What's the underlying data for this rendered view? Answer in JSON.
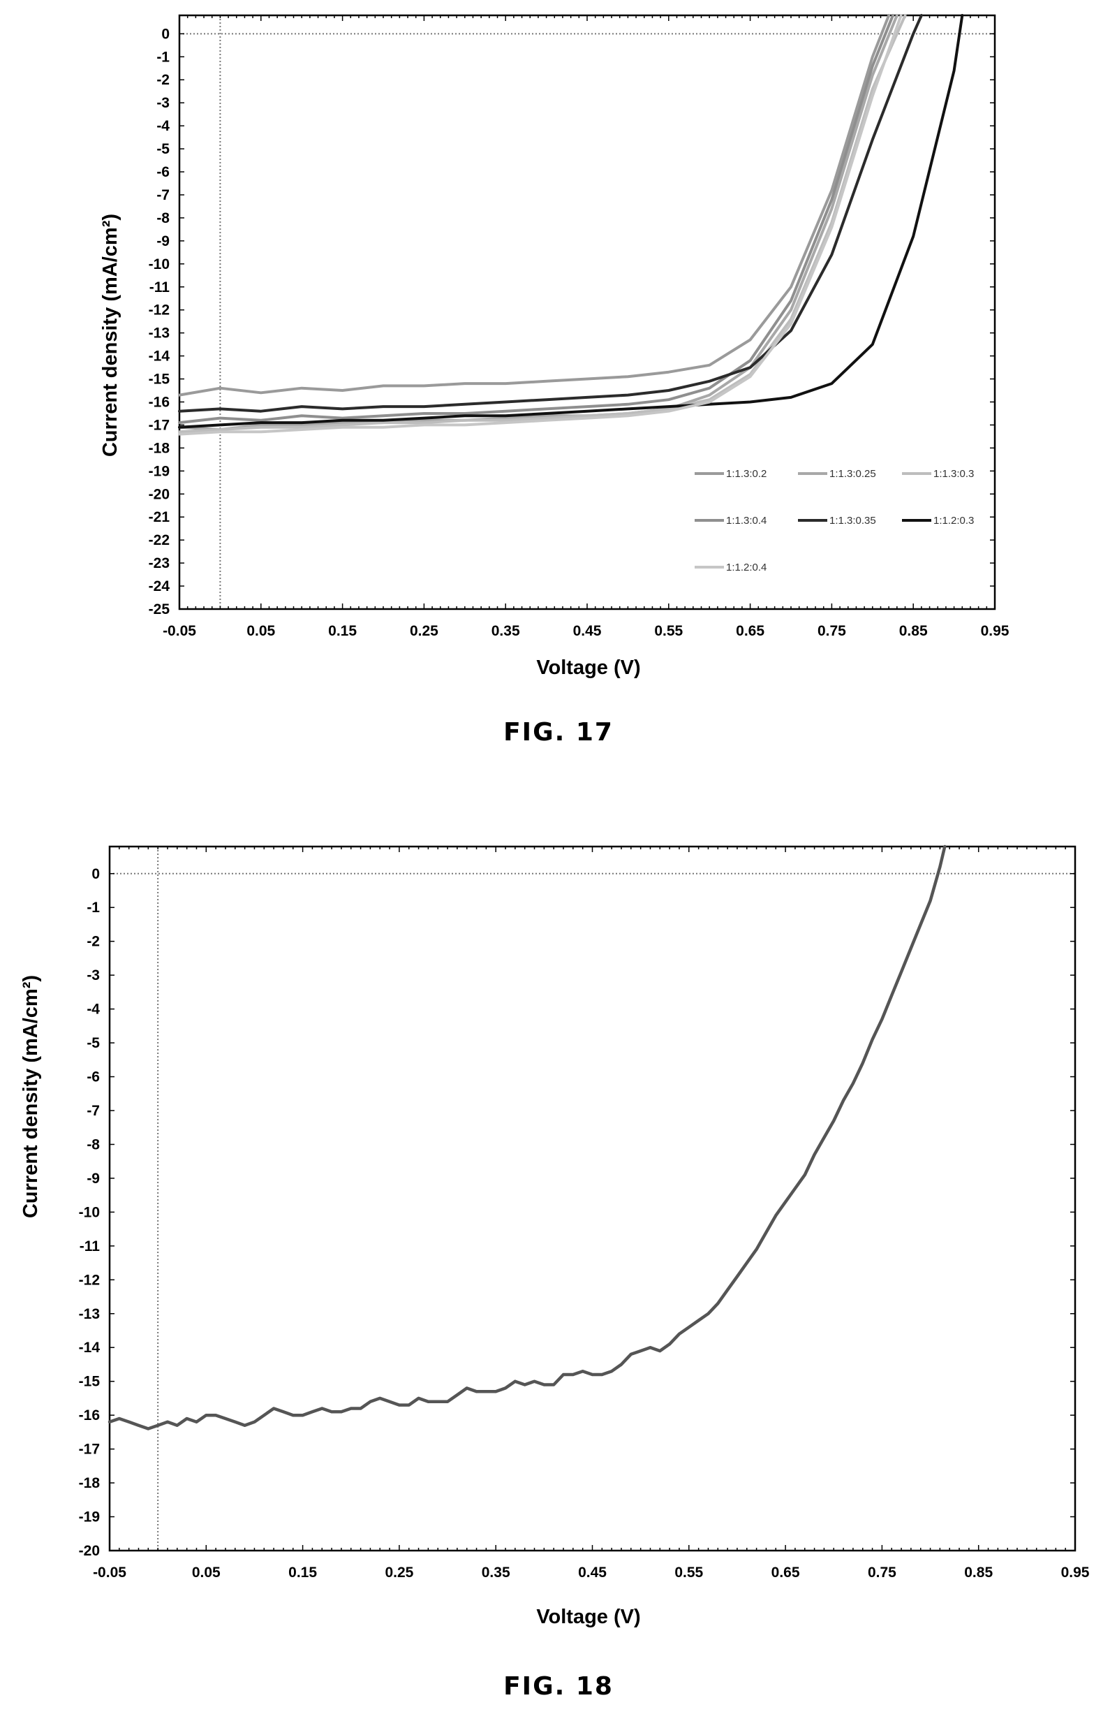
{
  "chart_data": [
    {
      "type": "line",
      "caption": "FIG. 17",
      "xlabel": "Voltage (V)",
      "ylabel": "Current density (mA/cm²)",
      "xlim": [
        -0.05,
        0.95
      ],
      "ylim": [
        -25,
        0.8
      ],
      "xticks": [
        "-0.05",
        "0.05",
        "0.15",
        "0.25",
        "0.35",
        "0.45",
        "0.55",
        "0.65",
        "0.75",
        "0.85",
        "0.95"
      ],
      "yticks": [
        "0",
        "-1",
        "-2",
        "-3",
        "-4",
        "-5",
        "-6",
        "-7",
        "-8",
        "-9",
        "-10",
        "-11",
        "-12",
        "-13",
        "-14",
        "-15",
        "-16",
        "-17",
        "-18",
        "-19",
        "-20",
        "-21",
        "-22",
        "-23",
        "-24",
        "-25"
      ],
      "legend_position": "bottom-right",
      "grid": false,
      "series": [
        {
          "name": "1:1.3:0.2",
          "color": "#9a9a9a",
          "x": [
            -0.05,
            0.0,
            0.05,
            0.1,
            0.15,
            0.2,
            0.25,
            0.3,
            0.35,
            0.4,
            0.45,
            0.5,
            0.55,
            0.6,
            0.65,
            0.7,
            0.75,
            0.8,
            0.82
          ],
          "y": [
            -15.7,
            -15.4,
            -15.6,
            -15.4,
            -15.5,
            -15.3,
            -15.3,
            -15.2,
            -15.2,
            -15.1,
            -15.0,
            -14.9,
            -14.7,
            -14.4,
            -13.3,
            -11.0,
            -6.8,
            -1.0,
            0.8
          ]
        },
        {
          "name": "1:1.3:0.25",
          "color": "#a8a8a8",
          "x": [
            -0.05,
            0.0,
            0.05,
            0.1,
            0.15,
            0.2,
            0.25,
            0.3,
            0.35,
            0.4,
            0.45,
            0.5,
            0.55,
            0.6,
            0.65,
            0.7,
            0.75,
            0.8,
            0.83
          ],
          "y": [
            -17.1,
            -17.2,
            -17.0,
            -17.0,
            -16.9,
            -16.9,
            -16.8,
            -16.8,
            -16.7,
            -16.6,
            -16.6,
            -16.5,
            -16.3,
            -15.7,
            -14.5,
            -12.0,
            -7.6,
            -1.8,
            0.8
          ]
        },
        {
          "name": "1:1.3:0.3",
          "color": "#bdbdbd",
          "x": [
            -0.05,
            0.0,
            0.05,
            0.1,
            0.15,
            0.2,
            0.25,
            0.3,
            0.35,
            0.4,
            0.45,
            0.5,
            0.55,
            0.6,
            0.65,
            0.7,
            0.75,
            0.8,
            0.84
          ],
          "y": [
            -17.3,
            -17.2,
            -17.1,
            -17.1,
            -17.0,
            -16.9,
            -16.9,
            -16.8,
            -16.8,
            -16.7,
            -16.6,
            -16.5,
            -16.3,
            -15.9,
            -14.8,
            -12.4,
            -8.2,
            -2.4,
            0.8
          ]
        },
        {
          "name": "1:1.3:0.4",
          "color": "#8f8f8f",
          "x": [
            -0.05,
            0.0,
            0.05,
            0.1,
            0.15,
            0.2,
            0.25,
            0.3,
            0.35,
            0.4,
            0.45,
            0.5,
            0.55,
            0.6,
            0.65,
            0.7,
            0.75,
            0.8,
            0.825
          ],
          "y": [
            -16.9,
            -16.7,
            -16.8,
            -16.6,
            -16.7,
            -16.6,
            -16.5,
            -16.5,
            -16.4,
            -16.3,
            -16.2,
            -16.1,
            -15.9,
            -15.4,
            -14.2,
            -11.6,
            -7.2,
            -1.4,
            0.8
          ]
        },
        {
          "name": "1:1.3:0.35",
          "color": "#2b2b2b",
          "x": [
            -0.05,
            0.0,
            0.05,
            0.1,
            0.15,
            0.2,
            0.25,
            0.3,
            0.35,
            0.4,
            0.45,
            0.5,
            0.55,
            0.6,
            0.65,
            0.7,
            0.75,
            0.8,
            0.85,
            0.86
          ],
          "y": [
            -16.4,
            -16.3,
            -16.4,
            -16.2,
            -16.3,
            -16.2,
            -16.2,
            -16.1,
            -16.0,
            -15.9,
            -15.8,
            -15.7,
            -15.5,
            -15.1,
            -14.5,
            -12.9,
            -9.6,
            -4.6,
            0.0,
            0.8
          ]
        },
        {
          "name": "1:1.2:0.3",
          "color": "#111111",
          "x": [
            -0.05,
            0.0,
            0.05,
            0.1,
            0.15,
            0.2,
            0.25,
            0.3,
            0.35,
            0.4,
            0.45,
            0.5,
            0.55,
            0.6,
            0.65,
            0.7,
            0.75,
            0.8,
            0.85,
            0.9,
            0.91
          ],
          "y": [
            -17.1,
            -17.0,
            -16.9,
            -16.9,
            -16.8,
            -16.8,
            -16.7,
            -16.6,
            -16.6,
            -16.5,
            -16.4,
            -16.3,
            -16.2,
            -16.1,
            -16.0,
            -15.8,
            -15.2,
            -13.5,
            -8.8,
            -1.6,
            0.8
          ]
        },
        {
          "name": "1:1.2:0.4",
          "color": "#c6c6c6",
          "x": [
            -0.05,
            0.0,
            0.05,
            0.1,
            0.15,
            0.2,
            0.25,
            0.3,
            0.35,
            0.4,
            0.45,
            0.5,
            0.55,
            0.6,
            0.65,
            0.7,
            0.75,
            0.8,
            0.835
          ],
          "y": [
            -17.4,
            -17.3,
            -17.3,
            -17.2,
            -17.1,
            -17.1,
            -17.0,
            -17.0,
            -16.9,
            -16.8,
            -16.7,
            -16.6,
            -16.4,
            -16.0,
            -14.9,
            -12.6,
            -8.4,
            -2.7,
            0.8
          ]
        }
      ]
    },
    {
      "type": "line",
      "caption": "FIG. 18",
      "xlabel": "Voltage (V)",
      "ylabel": "Current density (mA/cm²)",
      "xlim": [
        -0.05,
        0.95
      ],
      "ylim": [
        -20,
        0.8
      ],
      "xticks": [
        "-0.05",
        "0.05",
        "0.15",
        "0.25",
        "0.35",
        "0.45",
        "0.55",
        "0.65",
        "0.75",
        "0.85",
        "0.95"
      ],
      "yticks": [
        "0",
        "-1",
        "-2",
        "-3",
        "-4",
        "-5",
        "-6",
        "-7",
        "-8",
        "-9",
        "-10",
        "-11",
        "-12",
        "-13",
        "-14",
        "-15",
        "-16",
        "-17",
        "-18",
        "-19",
        "-20"
      ],
      "grid": false,
      "series": [
        {
          "color": "#555555",
          "x": [
            -0.05,
            -0.04,
            -0.03,
            -0.02,
            -0.01,
            0.0,
            0.01,
            0.02,
            0.03,
            0.04,
            0.05,
            0.06,
            0.07,
            0.08,
            0.09,
            0.1,
            0.11,
            0.12,
            0.13,
            0.14,
            0.15,
            0.16,
            0.17,
            0.18,
            0.19,
            0.2,
            0.21,
            0.22,
            0.23,
            0.24,
            0.25,
            0.26,
            0.27,
            0.28,
            0.29,
            0.3,
            0.31,
            0.32,
            0.33,
            0.34,
            0.35,
            0.36,
            0.37,
            0.38,
            0.39,
            0.4,
            0.41,
            0.42,
            0.43,
            0.44,
            0.45,
            0.46,
            0.47,
            0.48,
            0.49,
            0.5,
            0.51,
            0.52,
            0.53,
            0.54,
            0.55,
            0.56,
            0.57,
            0.58,
            0.59,
            0.6,
            0.61,
            0.62,
            0.63,
            0.64,
            0.65,
            0.66,
            0.67,
            0.68,
            0.69,
            0.7,
            0.71,
            0.72,
            0.73,
            0.74,
            0.75,
            0.76,
            0.77,
            0.78,
            0.79,
            0.8,
            0.81,
            0.815
          ],
          "y": [
            -16.2,
            -16.1,
            -16.2,
            -16.3,
            -16.4,
            -16.3,
            -16.2,
            -16.3,
            -16.1,
            -16.2,
            -16.0,
            -16.0,
            -16.1,
            -16.2,
            -16.3,
            -16.2,
            -16.0,
            -15.8,
            -15.9,
            -16.0,
            -16.0,
            -15.9,
            -15.8,
            -15.9,
            -15.9,
            -15.8,
            -15.8,
            -15.6,
            -15.5,
            -15.6,
            -15.7,
            -15.7,
            -15.5,
            -15.6,
            -15.6,
            -15.6,
            -15.4,
            -15.2,
            -15.3,
            -15.3,
            -15.3,
            -15.2,
            -15.0,
            -15.1,
            -15.0,
            -15.1,
            -15.1,
            -14.8,
            -14.8,
            -14.7,
            -14.8,
            -14.8,
            -14.7,
            -14.5,
            -14.2,
            -14.1,
            -14.0,
            -14.1,
            -13.9,
            -13.6,
            -13.4,
            -13.2,
            -13.0,
            -12.7,
            -12.3,
            -11.9,
            -11.5,
            -11.1,
            -10.6,
            -10.1,
            -9.7,
            -9.3,
            -8.9,
            -8.3,
            -7.8,
            -7.3,
            -6.7,
            -6.2,
            -5.6,
            -4.9,
            -4.3,
            -3.6,
            -2.9,
            -2.2,
            -1.5,
            -0.8,
            0.2,
            0.8
          ]
        }
      ]
    }
  ]
}
